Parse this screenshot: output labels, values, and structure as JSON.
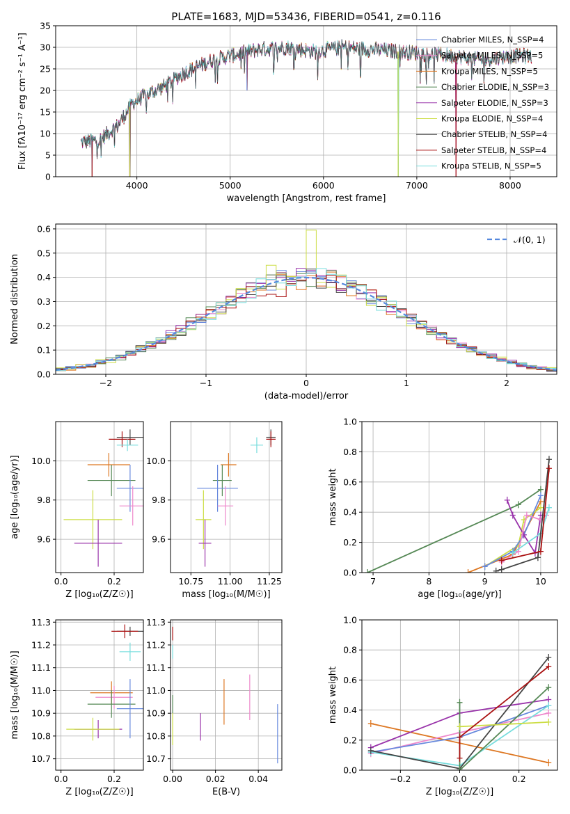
{
  "figure": {
    "title": "PLATE=1683, MJD=53436, FIBERID=0541, z=0.116"
  },
  "chart_data": [
    {
      "id": "spectrum",
      "type": "line",
      "xlabel": "wavelength [Angstrom, rest frame]",
      "ylabel": "Flux [fλ10⁻¹⁷ erg cm⁻² s⁻¹ A⁻¹]",
      "xlim": [
        3130,
        8500
      ],
      "ylim": [
        0,
        35
      ],
      "xticks": [
        4000,
        5000,
        6000,
        7000,
        8000
      ],
      "yticks": [
        0,
        5,
        10,
        15,
        20,
        25,
        30,
        35
      ],
      "legend_position": "right",
      "series": [
        {
          "name": "Chabrier MILES, N_SSP=4",
          "color": "#6688dd"
        },
        {
          "name": "Salpeter MILES, N_SSP=5",
          "color": "#ee88cc"
        },
        {
          "name": "Kroupa MILES, N_SSP=5",
          "color": "#dd7722"
        },
        {
          "name": "Chabrier ELODIE, N_SSP=3",
          "color": "#558855"
        },
        {
          "name": "Salpeter ELODIE, N_SSP=3",
          "color": "#9933aa"
        },
        {
          "name": "Kroupa ELODIE, N_SSP=4",
          "color": "#ccdd44"
        },
        {
          "name": "Chabrier STELIB, N_SSP=4",
          "color": "#444444"
        },
        {
          "name": "Salpeter STELIB, N_SSP=4",
          "color": "#aa1111"
        },
        {
          "name": "Kroupa STELIB, N_SSP=5",
          "color": "#77dddd"
        }
      ],
      "continuum": {
        "x": [
          3400,
          3600,
          3800,
          3950,
          4100,
          4300,
          4500,
          4800,
          5000,
          5300,
          5600,
          5900,
          6200,
          6500,
          6800,
          7100,
          7400,
          7700,
          8000,
          8230
        ],
        "y": [
          8,
          8.5,
          12,
          17,
          19,
          21,
          24,
          27,
          28,
          29.5,
          30,
          29,
          30,
          29.5,
          29,
          28.5,
          28,
          27,
          28,
          28
        ]
      },
      "spikes": [
        {
          "x": 3520,
          "y": 0
        },
        {
          "x": 3925,
          "y": 0
        },
        {
          "x": 5180,
          "y": 20
        },
        {
          "x": 6800,
          "y": 0
        },
        {
          "x": 7420,
          "y": 0
        }
      ]
    },
    {
      "id": "residuals",
      "type": "histogram",
      "xlabel": "(data-model)/error",
      "ylabel": "Normed distribution",
      "xlim": [
        -2.5,
        2.5
      ],
      "ylim": [
        0,
        0.62
      ],
      "xticks": [
        -2,
        -1,
        0,
        1,
        2
      ],
      "yticks": [
        0.0,
        0.1,
        0.2,
        0.3,
        0.4,
        0.5,
        0.6
      ],
      "reference": {
        "name": "𝒩(0, 1)",
        "color": "#5588dd"
      },
      "bin_width": 0.1,
      "n_hist": 9,
      "highlight_bins": [
        {
          "series": 5,
          "x": 0.0,
          "value": 0.595
        },
        {
          "series": 5,
          "x": -0.4,
          "value": 0.45
        },
        {
          "series": 7,
          "x": -0.3,
          "value": 0.32
        },
        {
          "series": 7,
          "x": -0.4,
          "value": 0.33
        }
      ]
    },
    {
      "id": "z-vs-age",
      "type": "scatter",
      "xlabel": "Z [log₁₀(Z/Z☉)]",
      "ylabel": "age  [log₁₀(age/yr)]",
      "xlim": [
        -0.02,
        0.31
      ],
      "ylim": [
        9.43,
        10.2
      ],
      "xticks": [
        0.0,
        0.2
      ],
      "yticks": [
        9.6,
        9.8,
        10.0
      ],
      "points": [
        {
          "x": 0.26,
          "y": 10.12,
          "xerr": 0.05,
          "yerr": 0.04,
          "c": 6
        },
        {
          "x": 0.23,
          "y": 10.11,
          "xerr": 0.05,
          "yerr": 0.04,
          "c": 7
        },
        {
          "x": 0.25,
          "y": 10.08,
          "xerr": 0.04,
          "yerr": 0.03,
          "c": 8
        },
        {
          "x": 0.18,
          "y": 9.98,
          "xerr": 0.08,
          "yerr": 0.06,
          "c": 2
        },
        {
          "x": 0.19,
          "y": 9.9,
          "xerr": 0.09,
          "yerr": 0.08,
          "c": 3
        },
        {
          "x": 0.26,
          "y": 9.86,
          "xerr": 0.05,
          "yerr": 0.12,
          "c": 0
        },
        {
          "x": 0.27,
          "y": 9.77,
          "xerr": 0.05,
          "yerr": 0.1,
          "c": 1
        },
        {
          "x": 0.12,
          "y": 9.7,
          "xerr": 0.11,
          "yerr": 0.15,
          "c": 5
        },
        {
          "x": 0.14,
          "y": 9.58,
          "xerr": 0.09,
          "yerr": 0.12,
          "c": 4
        }
      ]
    },
    {
      "id": "mass-vs-age",
      "type": "scatter",
      "xlabel": "mass [log₁₀(M/M☉)]",
      "ylabel": "",
      "xlim": [
        10.62,
        11.33
      ],
      "ylim": [
        9.43,
        10.2
      ],
      "xticks": [
        10.75,
        11.0,
        11.25
      ],
      "yticks": [
        9.6,
        9.8,
        10.0
      ],
      "points": [
        {
          "x": 11.26,
          "y": 10.12,
          "xerr": 0.03,
          "yerr": 0.04,
          "c": 6
        },
        {
          "x": 11.26,
          "y": 10.11,
          "xerr": 0.03,
          "yerr": 0.04,
          "c": 7
        },
        {
          "x": 11.17,
          "y": 10.08,
          "xerr": 0.04,
          "yerr": 0.04,
          "c": 8
        },
        {
          "x": 10.99,
          "y": 9.98,
          "xerr": 0.05,
          "yerr": 0.06,
          "c": 2
        },
        {
          "x": 10.95,
          "y": 9.9,
          "xerr": 0.06,
          "yerr": 0.08,
          "c": 3
        },
        {
          "x": 10.92,
          "y": 9.86,
          "xerr": 0.13,
          "yerr": 0.12,
          "c": 0
        },
        {
          "x": 10.97,
          "y": 9.77,
          "xerr": 0.05,
          "yerr": 0.1,
          "c": 1
        },
        {
          "x": 10.83,
          "y": 9.7,
          "xerr": 0.05,
          "yerr": 0.15,
          "c": 5
        },
        {
          "x": 10.84,
          "y": 9.58,
          "xerr": 0.04,
          "yerr": 0.12,
          "c": 4
        }
      ]
    },
    {
      "id": "age-vs-weight",
      "type": "line",
      "xlabel": "age  [log₁₀(age/yr)]",
      "ylabel": "mass weight",
      "xlim": [
        6.8,
        10.3
      ],
      "ylim": [
        0,
        1.0
      ],
      "xticks": [
        7,
        8,
        9,
        10
      ],
      "yticks": [
        0.0,
        0.2,
        0.4,
        0.6,
        0.8,
        1.0
      ],
      "series": [
        {
          "c": 3,
          "pts": [
            [
              6.9,
              0.0
            ],
            [
              9.6,
              0.45
            ],
            [
              10.0,
              0.55
            ]
          ]
        },
        {
          "c": 2,
          "pts": [
            [
              8.7,
              0.0
            ],
            [
              9.5,
              0.12
            ],
            [
              10.0,
              0.47
            ]
          ]
        },
        {
          "c": 5,
          "pts": [
            [
              9.0,
              0.04
            ],
            [
              9.6,
              0.18
            ],
            [
              9.7,
              0.35
            ],
            [
              10.0,
              0.43
            ]
          ]
        },
        {
          "c": 0,
          "pts": [
            [
              9.0,
              0.04
            ],
            [
              9.5,
              0.14
            ],
            [
              9.7,
              0.25
            ],
            [
              10.0,
              0.51
            ]
          ]
        },
        {
          "c": 4,
          "pts": [
            [
              9.4,
              0.48
            ],
            [
              9.5,
              0.38
            ],
            [
              9.7,
              0.25
            ],
            [
              9.9,
              0.13
            ],
            [
              10.0,
              0.38
            ]
          ]
        },
        {
          "c": 1,
          "pts": [
            [
              9.3,
              0.07
            ],
            [
              9.6,
              0.14
            ],
            [
              9.75,
              0.38
            ],
            [
              10.0,
              0.35
            ],
            [
              10.1,
              0.38
            ]
          ]
        },
        {
          "c": 8,
          "pts": [
            [
              9.5,
              0.13
            ],
            [
              10.0,
              0.26
            ],
            [
              10.15,
              0.43
            ]
          ]
        },
        {
          "c": 6,
          "pts": [
            [
              9.2,
              0.01
            ],
            [
              9.3,
              0.02
            ],
            [
              9.95,
              0.1
            ],
            [
              10.15,
              0.75
            ]
          ]
        },
        {
          "c": 7,
          "pts": [
            [
              9.3,
              0.08
            ],
            [
              10.0,
              0.14
            ],
            [
              10.15,
              0.69
            ]
          ]
        }
      ]
    },
    {
      "id": "z-vs-mass",
      "type": "scatter",
      "xlabel": "Z [log₁₀(Z/Z☉)]",
      "ylabel": "mass [log₁₀(M/M☉)]",
      "xlim": [
        -0.02,
        0.31
      ],
      "ylim": [
        10.65,
        11.31
      ],
      "xticks": [
        0.0,
        0.2
      ],
      "yticks": [
        10.7,
        10.8,
        10.9,
        11.0,
        11.1,
        11.2,
        11.3
      ],
      "points": [
        {
          "x": 0.26,
          "y": 11.26,
          "xerr": 0.05,
          "yerr": 0.02,
          "c": 6
        },
        {
          "x": 0.24,
          "y": 11.26,
          "xerr": 0.05,
          "yerr": 0.03,
          "c": 7
        },
        {
          "x": 0.26,
          "y": 11.17,
          "xerr": 0.04,
          "yerr": 0.04,
          "c": 8
        },
        {
          "x": 0.19,
          "y": 10.99,
          "xerr": 0.08,
          "yerr": 0.05,
          "c": 2
        },
        {
          "x": 0.2,
          "y": 10.97,
          "xerr": 0.07,
          "yerr": 0.05,
          "c": 1
        },
        {
          "x": 0.19,
          "y": 10.94,
          "xerr": 0.09,
          "yerr": 0.06,
          "c": 3
        },
        {
          "x": 0.26,
          "y": 10.92,
          "xerr": 0.05,
          "yerr": 0.13,
          "c": 0
        },
        {
          "x": 0.14,
          "y": 10.83,
          "xerr": 0.09,
          "yerr": 0.04,
          "c": 4
        },
        {
          "x": 0.12,
          "y": 10.83,
          "xerr": 0.1,
          "yerr": 0.05,
          "c": 5
        }
      ]
    },
    {
      "id": "ebv-vs-mass",
      "type": "scatter",
      "xlabel": "E(B-V)",
      "ylabel": "",
      "xlim": [
        -0.001,
        0.051
      ],
      "ylim": [
        10.65,
        11.31
      ],
      "xticks": [
        0.0,
        0.02,
        0.04
      ],
      "yticks": [
        10.7,
        10.8,
        10.9,
        11.0,
        11.1,
        11.2,
        11.3
      ],
      "points": [
        {
          "x": 0.0,
          "y": 11.25,
          "xerr": 0,
          "yerr": 0.03,
          "c": 7
        },
        {
          "x": 0.0,
          "y": 11.17,
          "xerr": 0,
          "yerr": 0.03,
          "c": 8
        },
        {
          "x": 0.0,
          "y": 10.94,
          "xerr": 0,
          "yerr": 0.04,
          "c": 3
        },
        {
          "x": 0.0,
          "y": 10.83,
          "xerr": 0,
          "yerr": 0.07,
          "c": 5
        },
        {
          "x": 0.013,
          "y": 10.84,
          "xerr": 0,
          "yerr": 0.06,
          "c": 4
        },
        {
          "x": 0.024,
          "y": 10.95,
          "xerr": 0,
          "yerr": 0.1,
          "c": 2
        },
        {
          "x": 0.036,
          "y": 10.97,
          "xerr": 0,
          "yerr": 0.1,
          "c": 1
        },
        {
          "x": 0.049,
          "y": 10.81,
          "xerr": 0,
          "yerr": 0.13,
          "c": 0
        }
      ]
    },
    {
      "id": "z-vs-weight",
      "type": "line",
      "xlabel": "Z [log₁₀(Z/Z☉)]",
      "ylabel": "mass weight",
      "xlim": [
        -0.33,
        0.33
      ],
      "ylim": [
        0,
        1.0
      ],
      "xticks": [
        -0.2,
        0.0,
        0.2
      ],
      "yticks": [
        0.0,
        0.2,
        0.4,
        0.6,
        0.8,
        1.0
      ],
      "series": [
        {
          "c": 2,
          "pts": [
            [
              -0.3,
              0.31
            ],
            [
              0.3,
              0.05
            ]
          ]
        },
        {
          "c": 4,
          "pts": [
            [
              -0.3,
              0.15
            ],
            [
              0.0,
              0.38
            ],
            [
              0.3,
              0.47
            ]
          ]
        },
        {
          "c": 1,
          "pts": [
            [
              -0.3,
              0.11
            ],
            [
              0.0,
              0.25
            ],
            [
              0.3,
              0.38
            ]
          ]
        },
        {
          "c": 0,
          "pts": [
            [
              -0.3,
              0.12
            ],
            [
              0.0,
              0.22
            ],
            [
              0.3,
              0.43
            ]
          ]
        },
        {
          "c": 8,
          "pts": [
            [
              -0.3,
              0.12
            ],
            [
              0.0,
              0.03
            ],
            [
              0.3,
              0.43
            ]
          ]
        },
        {
          "c": 6,
          "pts": [
            [
              -0.3,
              0.13
            ],
            [
              0.0,
              0.01
            ],
            [
              0.3,
              0.75
            ]
          ]
        },
        {
          "c": 3,
          "pts": [
            [
              0.0,
              0.45
            ],
            [
              0.0,
              0.0
            ],
            [
              0.3,
              0.55
            ]
          ]
        },
        {
          "c": 5,
          "pts": [
            [
              0.0,
              0.29
            ],
            [
              0.3,
              0.32
            ]
          ]
        },
        {
          "c": 7,
          "pts": [
            [
              0.0,
              0.08
            ],
            [
              0.0,
              0.22
            ],
            [
              0.3,
              0.69
            ]
          ]
        }
      ]
    }
  ]
}
